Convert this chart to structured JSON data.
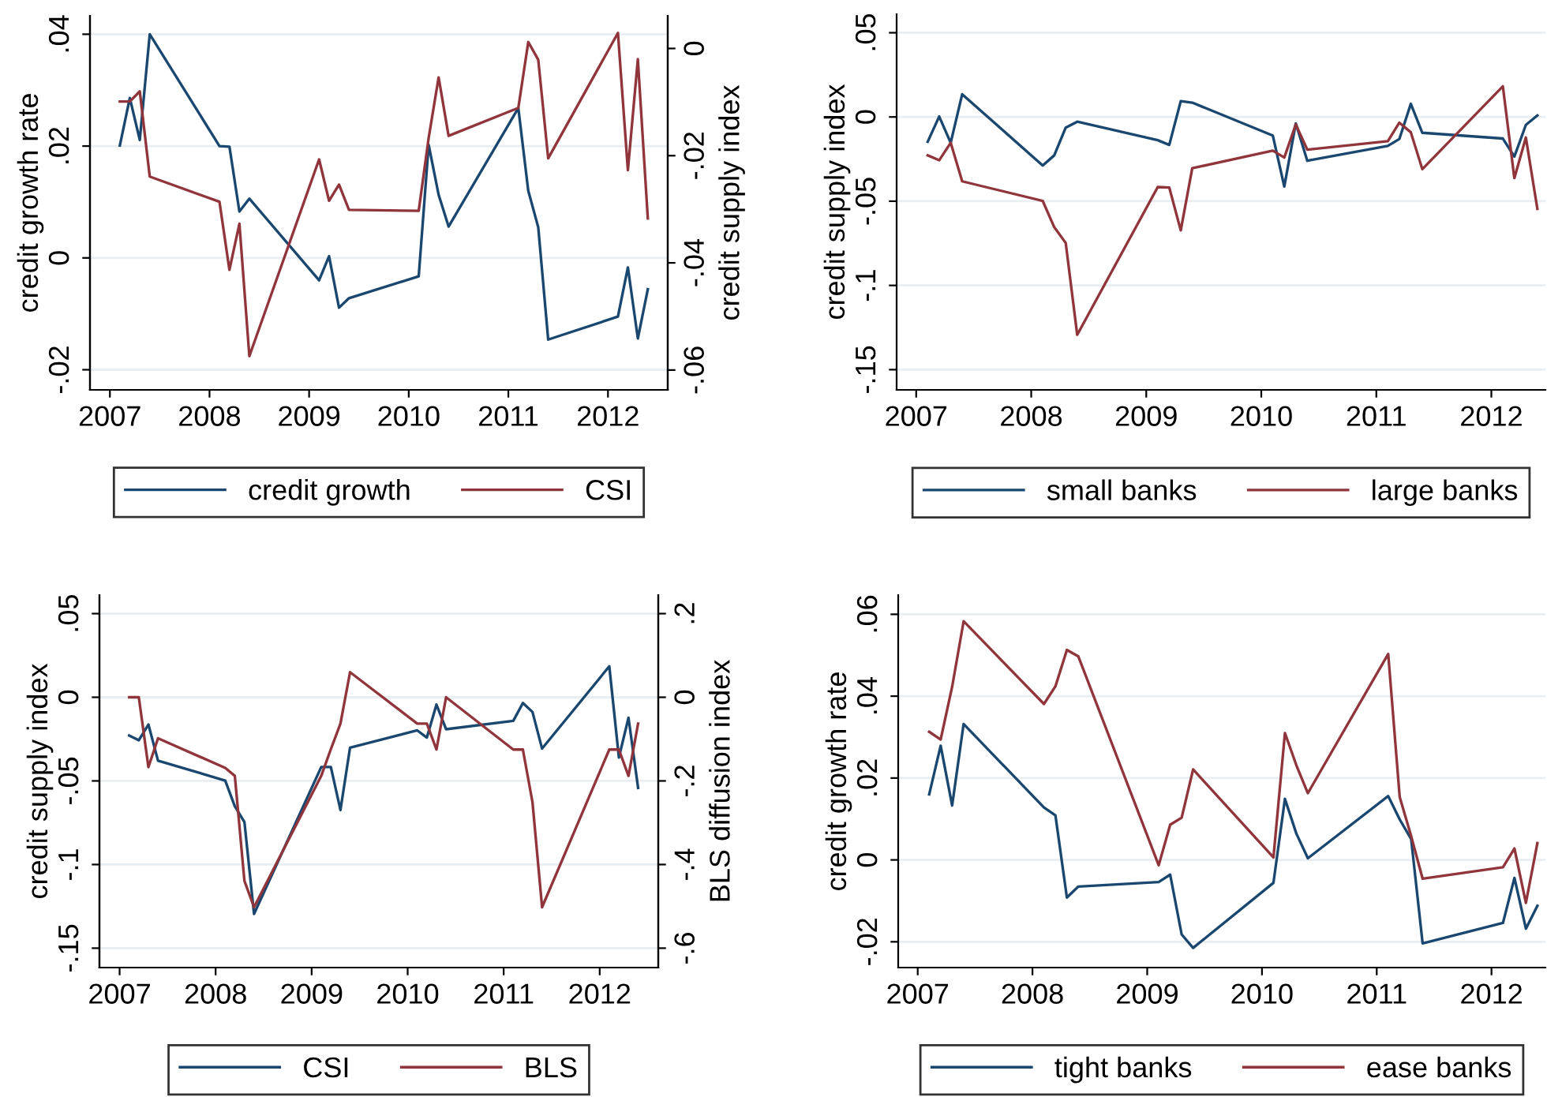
{
  "chart_data": [
    {
      "type": "line",
      "ylabel": "credit growth rate",
      "y2label": "credit supply index",
      "x": [
        2007.1,
        2007.2,
        2007.3,
        2007.4,
        2008.1,
        2008.2,
        2008.3,
        2008.4,
        2009.1,
        2009.2,
        2009.3,
        2009.4,
        2010.1,
        2010.2,
        2010.3,
        2010.4,
        2011.1,
        2011.2,
        2011.3,
        2011.4,
        2012.1,
        2012.2,
        2012.3,
        2012.4
      ],
      "series": [
        {
          "name": "credit growth",
          "color": "#1a476f",
          "values": [
            0.0201,
            0.0286,
            0.0211,
            0.04,
            0.02,
            0.0199,
            0.0083,
            0.0106,
            -0.004,
            0.0003,
            -0.0089,
            -0.0072,
            -0.0033,
            0.0202,
            0.0113,
            0.0056,
            0.0268,
            0.012,
            0.0055,
            -0.0146,
            -0.0105,
            -0.0017,
            -0.0144,
            -0.0056
          ]
        },
        {
          "name": "CSI",
          "color": "#90353b",
          "axis": "y2",
          "values": [
            -0.0099,
            -0.0099,
            -0.008,
            -0.0239,
            -0.0286,
            -0.0413,
            -0.0327,
            -0.0574,
            -0.0207,
            -0.0284,
            -0.0254,
            -0.0301,
            -0.0303,
            -0.0167,
            -0.0054,
            -0.0163,
            -0.0111,
            0.0012,
            -0.0021,
            -0.0205,
            0.0029,
            -0.0227,
            -0.002,
            -0.0317
          ]
        }
      ],
      "xlim": [
        2006.8,
        2012.6
      ],
      "xticks": [
        2007,
        2008,
        2009,
        2010,
        2011,
        2012
      ],
      "ylim": [
        -0.0236,
        0.0433
      ],
      "yticks": [
        {
          "value": -0.02,
          "label": "-.02"
        },
        0,
        {
          "value": 0.02,
          "label": ".02"
        },
        {
          "value": 0.04,
          "label": ".04"
        }
      ],
      "y2lim": [
        -0.0637,
        0.0061
      ],
      "y2ticks": [
        {
          "value": -0.06,
          "label": "-.06"
        },
        {
          "value": -0.04,
          "label": "-.04"
        },
        {
          "value": -0.02,
          "label": "-.02"
        },
        0
      ],
      "grid": "y",
      "legend": "bottom"
    },
    {
      "type": "line",
      "ylabel": "credit supply index",
      "x": [
        2007.1,
        2007.2,
        2007.3,
        2007.4,
        2008.1,
        2008.2,
        2008.3,
        2008.4,
        2009.1,
        2009.2,
        2009.3,
        2009.4,
        2010.1,
        2010.2,
        2010.3,
        2010.4,
        2011.1,
        2011.2,
        2011.3,
        2011.4,
        2012.1,
        2012.2,
        2012.3,
        2012.4
      ],
      "series": [
        {
          "name": "small banks",
          "color": "#1a476f",
          "values": [
            -0.0147,
            0.0003,
            -0.0153,
            0.0135,
            -0.0288,
            -0.0228,
            -0.0063,
            -0.0028,
            -0.0138,
            -0.0166,
            0.0094,
            0.0085,
            -0.011,
            -0.0413,
            -0.0038,
            -0.026,
            -0.0172,
            -0.0131,
            0.0078,
            -0.0094,
            -0.0128,
            -0.0235,
            -0.0047,
            0.0009
          ]
        },
        {
          "name": "large banks",
          "color": "#90353b",
          "values": [
            -0.0228,
            -0.0257,
            -0.0153,
            -0.0382,
            -0.0498,
            -0.0654,
            -0.0748,
            -0.1293,
            -0.0416,
            -0.0419,
            -0.0673,
            -0.0304,
            -0.02,
            -0.0241,
            -0.0044,
            -0.0194,
            -0.0144,
            -0.0034,
            -0.0091,
            -0.031,
            0.0182,
            -0.0363,
            -0.0122,
            -0.0545
          ]
        }
      ],
      "xlim": [
        2006.83,
        2012.47
      ],
      "xticks": [
        2007,
        2008,
        2009,
        2010,
        2011,
        2012
      ],
      "ylim": [
        -0.162,
        0.061
      ],
      "yticks": [
        {
          "value": -0.15,
          "label": "-.15"
        },
        {
          "value": -0.1,
          "label": "-.1"
        },
        {
          "value": -0.05,
          "label": "-.05"
        },
        0,
        {
          "value": 0.05,
          "label": ".05"
        }
      ],
      "grid": "y",
      "legend": "bottom"
    },
    {
      "type": "line",
      "ylabel": "credit supply index",
      "y2label": "BLS diffusion index",
      "x": [
        2007.1,
        2007.2,
        2007.3,
        2007.4,
        2008.1,
        2008.2,
        2008.3,
        2008.4,
        2009.1,
        2009.2,
        2009.3,
        2009.4,
        2010.1,
        2010.2,
        2010.3,
        2010.4,
        2011.1,
        2011.2,
        2011.3,
        2011.4,
        2012.1,
        2012.2,
        2012.3,
        2012.4
      ],
      "series": [
        {
          "name": "CSI",
          "color": "#1a476f",
          "values": [
            -0.0229,
            -0.0257,
            -0.0163,
            -0.0379,
            -0.0498,
            -0.0652,
            -0.0746,
            -0.1295,
            -0.0417,
            -0.0417,
            -0.0674,
            -0.0301,
            -0.0198,
            -0.0241,
            -0.0044,
            -0.0191,
            -0.0141,
            -0.0034,
            -0.0088,
            -0.0307,
            0.0185,
            -0.036,
            -0.0122,
            -0.0542
          ]
        },
        {
          "name": "BLS",
          "color": "#90353b",
          "axis": "y2",
          "values": [
            0,
            0,
            -0.167,
            -0.098,
            -0.169,
            -0.188,
            -0.439,
            -0.502,
            -0.188,
            -0.124,
            -0.063,
            0.06,
            -0.063,
            -0.063,
            -0.125,
            0,
            -0.125,
            -0.125,
            -0.251,
            -0.502,
            -0.125,
            -0.125,
            -0.188,
            -0.063
          ]
        }
      ],
      "xlim": [
        2006.79,
        2012.61
      ],
      "xticks": [
        2007,
        2008,
        2009,
        2010,
        2011,
        2012
      ],
      "ylim": [
        -0.1616,
        0.0611
      ],
      "yticks": [
        {
          "value": -0.15,
          "label": "-.15"
        },
        {
          "value": -0.1,
          "label": "-.1"
        },
        {
          "value": -0.05,
          "label": "-.05"
        },
        0,
        {
          "value": 0.05,
          "label": ".05"
        }
      ],
      "y2lim": [
        -0.6464,
        0.2444
      ],
      "y2ticks": [
        {
          "value": -0.6,
          "label": "-.6"
        },
        {
          "value": -0.4,
          "label": "-.4"
        },
        {
          "value": -0.2,
          "label": "-.2"
        },
        0,
        {
          "value": 0.2,
          "label": ".2"
        }
      ],
      "grid": "y",
      "legend": "bottom"
    },
    {
      "type": "line",
      "ylabel": "credit growth rate",
      "x": [
        2007.1,
        2007.2,
        2007.3,
        2007.4,
        2008.1,
        2008.2,
        2008.3,
        2008.4,
        2009.1,
        2009.2,
        2009.3,
        2009.4,
        2010.1,
        2010.2,
        2010.3,
        2010.4,
        2011.1,
        2011.2,
        2011.3,
        2011.4,
        2012.1,
        2012.2,
        2012.3,
        2012.4
      ],
      "series": [
        {
          "name": "tight banks",
          "color": "#1a476f",
          "values": [
            0.016,
            0.0279,
            0.0133,
            0.0332,
            0.0128,
            0.0109,
            -0.0092,
            -0.0065,
            -0.0054,
            -0.0036,
            -0.0182,
            -0.0215,
            -0.0056,
            0.0149,
            0.0064,
            0.0004,
            0.0156,
            0.0099,
            0.0051,
            -0.0204,
            -0.0154,
            -0.0044,
            -0.0168,
            -0.0112
          ]
        },
        {
          "name": "ease banks",
          "color": "#90353b",
          "values": [
            0.0313,
            0.0294,
            0.0423,
            0.0583,
            0.0381,
            0.0424,
            0.0513,
            0.0497,
            -0.0013,
            0.0086,
            0.0103,
            0.0221,
            0.0006,
            0.031,
            0.0231,
            0.0163,
            0.0503,
            0.0154,
            0.0058,
            -0.0046,
            -0.0018,
            0.0028,
            -0.0105,
            0.0041
          ]
        }
      ],
      "xlim": [
        2006.83,
        2012.47
      ],
      "xticks": [
        2007,
        2008,
        2009,
        2010,
        2011,
        2012
      ],
      "ylim": [
        -0.0263,
        0.0647
      ],
      "yticks": [
        {
          "value": -0.02,
          "label": "-.02"
        },
        0,
        {
          "value": 0.02,
          "label": ".02"
        },
        {
          "value": 0.04,
          "label": ".04"
        },
        {
          "value": 0.06,
          "label": ".06"
        }
      ],
      "grid": "y",
      "legend": "bottom"
    }
  ]
}
